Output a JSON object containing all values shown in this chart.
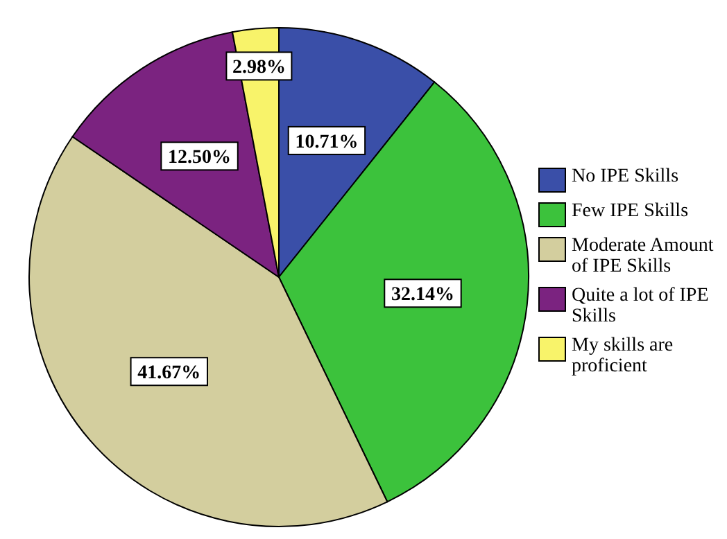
{
  "chart_data": {
    "type": "pie",
    "categories": [
      "No IPE Skills",
      "Few IPE Skills",
      "Moderate Amount of IPE Skills",
      "Quite a lot of IPE Skills",
      "My skills are proficient"
    ],
    "values": [
      10.71,
      32.14,
      41.67,
      12.5,
      2.98
    ],
    "value_labels": [
      "10.71%",
      "32.14%",
      "41.67%",
      "12.50%",
      "2.98%"
    ],
    "colors": [
      "#3a4fa8",
      "#3cc23c",
      "#d3ce9e",
      "#7b2380",
      "#f8f36a"
    ],
    "legend": "right"
  }
}
